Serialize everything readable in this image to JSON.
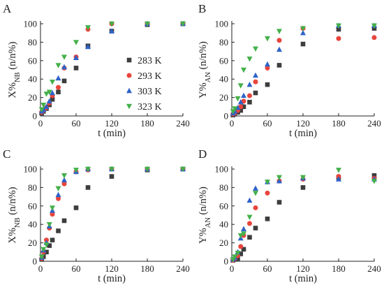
{
  "chart_data": [
    {
      "panel": "A",
      "type": "scatter",
      "xlabel": "t (min)",
      "ylabel": {
        "main": "X%",
        "sub": "NB",
        "tail": " (n/n%)"
      },
      "xlim": [
        0,
        240
      ],
      "ylim": [
        0,
        100
      ],
      "xticks": [
        0,
        60,
        120,
        180,
        240
      ],
      "yticks": [
        0,
        20,
        40,
        60,
        80,
        100
      ],
      "legend_position": "center-right",
      "series": [
        {
          "name": "283 K",
          "marker": "square",
          "color": "#3d3d3d",
          "x": [
            2,
            5,
            10,
            15,
            20,
            30,
            40,
            60,
            80,
            120,
            180,
            240
          ],
          "y": [
            3,
            5,
            8,
            12,
            18,
            26,
            38,
            52,
            76,
            92,
            99,
            100
          ]
        },
        {
          "name": "293 K",
          "marker": "circle",
          "color": "#e8453c",
          "x": [
            2,
            5,
            10,
            15,
            20,
            30,
            40,
            60,
            80,
            120,
            180,
            240
          ],
          "y": [
            4,
            6,
            9,
            14,
            22,
            31,
            52,
            64,
            94,
            100,
            100,
            100
          ]
        },
        {
          "name": "303 K",
          "marker": "triangle-up",
          "color": "#2e63c9",
          "x": [
            2,
            5,
            10,
            15,
            20,
            30,
            40,
            60,
            80,
            120,
            180,
            240
          ],
          "y": [
            5,
            7,
            10,
            16,
            25,
            41,
            53,
            63,
            75,
            92,
            100,
            100
          ]
        },
        {
          "name": "323 K",
          "marker": "triangle-down",
          "color": "#44b04a",
          "x": [
            2,
            5,
            10,
            15,
            20,
            30,
            40,
            60,
            80,
            120,
            180,
            240
          ],
          "y": [
            7,
            12,
            24,
            26,
            37,
            55,
            64,
            80,
            96,
            100,
            100,
            100
          ]
        }
      ]
    },
    {
      "panel": "B",
      "type": "scatter",
      "xlabel": "t (min)",
      "ylabel": {
        "main": "Y%",
        "sub": "AN",
        "tail": " (n/n%)"
      },
      "xlim": [
        0,
        240
      ],
      "ylim": [
        0,
        100
      ],
      "xticks": [
        0,
        60,
        120,
        180,
        240
      ],
      "yticks": [
        0,
        20,
        40,
        60,
        80,
        100
      ],
      "series": [
        {
          "name": "283 K",
          "marker": "square",
          "color": "#3d3d3d",
          "x": [
            2,
            5,
            10,
            15,
            20,
            30,
            40,
            60,
            80,
            120,
            180,
            240
          ],
          "y": [
            1,
            2,
            4,
            6,
            10,
            15,
            25,
            34,
            55,
            78,
            94,
            95
          ]
        },
        {
          "name": "293 K",
          "marker": "circle",
          "color": "#e8453c",
          "x": [
            2,
            5,
            10,
            15,
            20,
            30,
            40,
            60,
            80,
            120,
            180,
            240
          ],
          "y": [
            2,
            3,
            6,
            10,
            16,
            22,
            37,
            52,
            82,
            95,
            84,
            85
          ]
        },
        {
          "name": "303 K",
          "marker": "triangle-up",
          "color": "#2e63c9",
          "x": [
            2,
            5,
            10,
            15,
            20,
            30,
            40,
            60,
            80,
            120,
            180,
            240
          ],
          "y": [
            3,
            5,
            9,
            15,
            22,
            34,
            44,
            56,
            72,
            90,
            98,
            98
          ]
        },
        {
          "name": "323 K",
          "marker": "triangle-down",
          "color": "#44b04a",
          "x": [
            2,
            5,
            10,
            15,
            20,
            30,
            40,
            60,
            80,
            120,
            180,
            240
          ],
          "y": [
            5,
            8,
            19,
            33,
            50,
            62,
            73,
            84,
            92,
            95,
            98,
            98
          ]
        }
      ]
    },
    {
      "panel": "C",
      "type": "scatter",
      "xlabel": "t (min)",
      "ylabel": {
        "main": "X%",
        "sub": "NB",
        "tail": " (n/n%)"
      },
      "xlim": [
        0,
        240
      ],
      "ylim": [
        0,
        100
      ],
      "xticks": [
        0,
        60,
        120,
        180,
        240
      ],
      "yticks": [
        0,
        20,
        40,
        60,
        80,
        100
      ],
      "series": [
        {
          "name": "283 K",
          "marker": "square",
          "color": "#3d3d3d",
          "x": [
            2,
            5,
            10,
            15,
            20,
            30,
            40,
            60,
            80,
            120,
            180,
            240
          ],
          "y": [
            2,
            5,
            10,
            17,
            23,
            33,
            44,
            58,
            80,
            92,
            99,
            100
          ]
        },
        {
          "name": "293 K",
          "marker": "circle",
          "color": "#e8453c",
          "x": [
            2,
            5,
            10,
            15,
            20,
            30,
            40,
            60,
            80,
            120,
            180,
            240
          ],
          "y": [
            3,
            10,
            23,
            36,
            51,
            68,
            84,
            97,
            99,
            100,
            100,
            100
          ]
        },
        {
          "name": "303 K",
          "marker": "triangle-up",
          "color": "#2e63c9",
          "x": [
            2,
            5,
            10,
            15,
            20,
            30,
            40,
            60,
            80,
            120,
            180,
            240
          ],
          "y": [
            4,
            12,
            20,
            38,
            55,
            72,
            88,
            97,
            100,
            100,
            100,
            100
          ]
        },
        {
          "name": "323 K",
          "marker": "triangle-down",
          "color": "#44b04a",
          "x": [
            2,
            5,
            10,
            15,
            20,
            30,
            40,
            60,
            80,
            120,
            180,
            240
          ],
          "y": [
            5,
            13,
            18,
            40,
            58,
            79,
            93,
            99,
            100,
            100,
            100,
            100
          ]
        }
      ]
    },
    {
      "panel": "D",
      "type": "scatter",
      "xlabel": "t (min)",
      "ylabel": {
        "main": "Y%",
        "sub": "AN",
        "tail": " (n/n%)"
      },
      "xlim": [
        0,
        240
      ],
      "ylim": [
        0,
        100
      ],
      "xticks": [
        0,
        60,
        120,
        180,
        240
      ],
      "yticks": [
        0,
        20,
        40,
        60,
        80,
        100
      ],
      "series": [
        {
          "name": "283 K",
          "marker": "square",
          "color": "#3d3d3d",
          "x": [
            2,
            5,
            10,
            15,
            20,
            30,
            40,
            60,
            80,
            120,
            180,
            240
          ],
          "y": [
            1,
            2,
            3,
            8,
            13,
            26,
            36,
            46,
            64,
            80,
            91,
            93
          ]
        },
        {
          "name": "293 K",
          "marker": "circle",
          "color": "#e8453c",
          "x": [
            2,
            5,
            10,
            15,
            20,
            30,
            40,
            60,
            80,
            120,
            180,
            240
          ],
          "y": [
            1,
            3,
            6,
            16,
            28,
            41,
            58,
            74,
            87,
            89,
            92,
            90
          ]
        },
        {
          "name": "303 K",
          "marker": "triangle-up",
          "color": "#2e63c9",
          "x": [
            2,
            5,
            10,
            15,
            20,
            30,
            40,
            60,
            80,
            120,
            180,
            240
          ],
          "y": [
            2,
            4,
            10,
            25,
            35,
            66,
            79,
            86,
            87,
            90,
            89,
            89
          ]
        },
        {
          "name": "323 K",
          "marker": "triangle-down",
          "color": "#44b04a",
          "x": [
            2,
            5,
            10,
            15,
            20,
            30,
            40,
            60,
            80,
            120,
            180,
            240
          ],
          "y": [
            2,
            5,
            9,
            28,
            30,
            48,
            74,
            86,
            91,
            91,
            99,
            87
          ]
        }
      ]
    }
  ]
}
